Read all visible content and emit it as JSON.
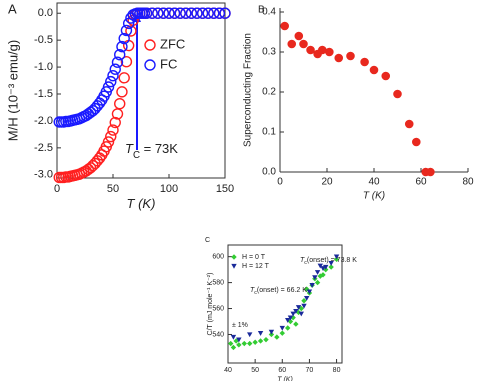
{
  "chart_data": [
    {
      "type": "scatter",
      "panel": "A",
      "x_label": "T (K)",
      "y_label": "M/H (10⁻³ emu/g)",
      "frame": "box",
      "legend": "upper right",
      "annotations": [
        [
          "T",
          "C",
          " = 73K"
        ]
      ],
      "xlim": [
        0,
        150
      ],
      "xticks": [
        0,
        50,
        100,
        150
      ],
      "ylim": [
        -3.06,
        0.19
      ],
      "yticks": [
        {
          "value": 0,
          "label": "0.0"
        },
        -0.5,
        {
          "value": -1,
          "label": "-1.0"
        },
        -1.5,
        {
          "value": -2,
          "label": "-2.0"
        },
        -2.5,
        {
          "value": -3,
          "label": "-3.0"
        }
      ],
      "x": [
        2,
        4,
        6,
        8,
        10,
        12,
        14,
        16,
        18,
        20,
        22,
        24,
        26,
        28,
        30,
        32,
        34,
        36,
        38,
        40,
        42,
        44,
        46,
        48,
        50,
        52,
        54,
        56,
        58,
        60,
        62,
        64,
        66,
        68,
        70,
        72,
        74,
        76,
        78,
        80,
        85,
        90,
        95,
        100,
        105,
        110,
        115,
        120,
        125,
        130,
        135,
        140,
        145,
        150
      ],
      "series": [
        {
          "name": "ZFC",
          "color": "#ff2020",
          "marker": "open-circle",
          "values": [
            -3.05,
            -3.05,
            -3.05,
            -3.04,
            -3.04,
            -3.03,
            -3.02,
            -3.01,
            -3.0,
            -2.99,
            -2.97,
            -2.95,
            -2.93,
            -2.9,
            -2.87,
            -2.83,
            -2.79,
            -2.74,
            -2.69,
            -2.63,
            -2.56,
            -2.48,
            -2.39,
            -2.29,
            -2.17,
            -2.03,
            -1.87,
            -1.68,
            -1.46,
            -1.2,
            -0.9,
            -0.6,
            -0.33,
            -0.13,
            -0.03,
            0,
            0,
            0,
            0,
            0,
            0,
            0,
            0,
            0,
            0,
            0,
            0,
            0,
            0,
            0,
            0,
            0,
            0,
            0
          ]
        },
        {
          "name": "FC",
          "color": "#1a1aff",
          "marker": "open-circle",
          "values": [
            -2.02,
            -2.02,
            -2.02,
            -2.01,
            -2.01,
            -2.0,
            -1.99,
            -1.98,
            -1.97,
            -1.96,
            -1.94,
            -1.92,
            -1.9,
            -1.87,
            -1.84,
            -1.81,
            -1.77,
            -1.72,
            -1.67,
            -1.61,
            -1.54,
            -1.46,
            -1.37,
            -1.27,
            -1.16,
            -1.04,
            -0.91,
            -0.77,
            -0.62,
            -0.47,
            -0.32,
            -0.19,
            -0.09,
            -0.03,
            -0.01,
            0,
            0,
            0,
            0,
            0,
            0,
            0,
            0,
            0,
            0,
            0,
            0,
            0,
            0,
            0,
            0,
            0,
            0,
            0
          ]
        }
      ]
    },
    {
      "type": "scatter",
      "panel": "B",
      "x_label": "T (K)",
      "y_label": "Superconducting Fraction",
      "frame": "axes",
      "xlim": [
        0,
        80
      ],
      "xticks": [
        0,
        20,
        40,
        60,
        80
      ],
      "ylim": [
        0,
        0.41
      ],
      "yticks": [
        {
          "value": 0,
          "label": "0.0"
        },
        0.1,
        0.2,
        0.3,
        0.4
      ],
      "x": [
        2,
        5,
        8,
        10,
        13,
        16,
        18,
        21,
        25,
        30,
        36,
        40,
        45,
        50,
        55,
        58,
        62,
        64
      ],
      "series": [
        {
          "name": null,
          "color": "#e8281e",
          "marker": "circle",
          "values": [
            0.365,
            0.32,
            0.34,
            0.32,
            0.305,
            0.295,
            0.305,
            0.3,
            0.285,
            0.29,
            0.275,
            0.255,
            0.24,
            0.195,
            0.12,
            0.075,
            0,
            0
          ]
        }
      ]
    },
    {
      "type": "scatter",
      "panel": "C",
      "x_label": "T (K)",
      "y_label": "C/T (mJ mole⁻¹ K⁻²)",
      "frame": "box",
      "legend": "upper left",
      "annotations": [
        [
          "T",
          "c",
          "(onset) = 73.8 K"
        ],
        [
          "T",
          "c",
          "(onset) = 66.2 K"
        ],
        "± 1%"
      ],
      "xlim": [
        40,
        82
      ],
      "xticks": [
        40,
        50,
        60,
        70,
        80
      ],
      "ylim": [
        518,
        609
      ],
      "yticks": [
        540,
        560,
        580,
        600
      ],
      "series": [
        {
          "name": "H = 0 T",
          "color": "#33cc33",
          "marker": "diamond",
          "x": [
            41,
            42,
            43,
            44,
            46,
            48,
            50,
            52,
            54,
            56,
            58,
            60,
            62,
            63,
            64,
            65,
            66,
            67,
            68,
            69,
            70,
            71,
            72,
            73,
            74,
            75,
            76,
            78,
            80
          ],
          "values": [
            533,
            530,
            535,
            532,
            533,
            533,
            534,
            535,
            536,
            540,
            538,
            541,
            545,
            550,
            553,
            548,
            557,
            560,
            566,
            575,
            572,
            578,
            583,
            580,
            585,
            586,
            590,
            592,
            598
          ]
        },
        {
          "name": "H = 12 T",
          "color": "#1a2a9a",
          "marker": "triangle",
          "x": [
            42,
            44,
            48,
            52,
            56,
            60,
            62,
            63,
            64,
            65,
            66,
            67,
            68,
            69,
            70,
            71,
            72,
            73,
            74,
            75,
            76,
            78,
            80
          ],
          "values": [
            538,
            536,
            540,
            541,
            542,
            545,
            551,
            553,
            556,
            558,
            561,
            556,
            562,
            568,
            573,
            578,
            584,
            588,
            593,
            591,
            592,
            595,
            600
          ]
        }
      ]
    }
  ]
}
